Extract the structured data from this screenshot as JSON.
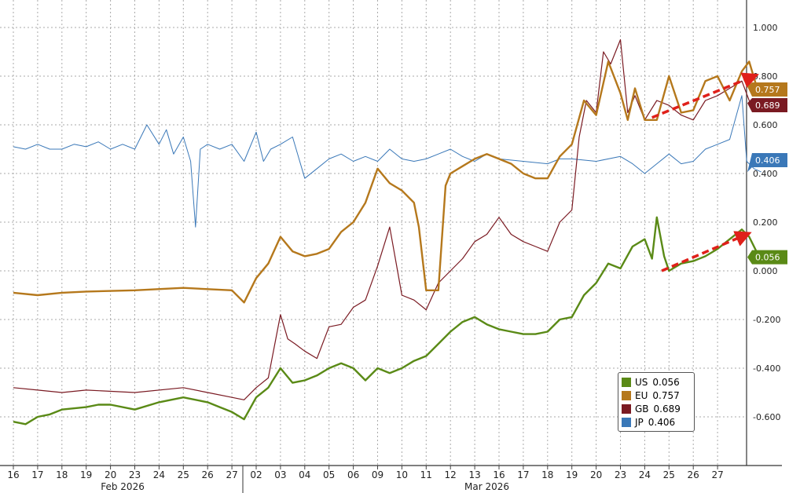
{
  "chart_data": {
    "type": "line",
    "x_labels": [
      "16",
      "17",
      "18",
      "19",
      "20",
      "23",
      "24",
      "25",
      "26",
      "27",
      "02",
      "03",
      "04",
      "05",
      "06",
      "09",
      "10",
      "11",
      "12",
      "13",
      "16",
      "17",
      "18",
      "19",
      "20",
      "23",
      "24",
      "25",
      "26",
      "27"
    ],
    "month_labels": [
      {
        "label": "Feb 2026",
        "at": 4.5
      },
      {
        "label": "Mar 2026",
        "at": 19.5
      }
    ],
    "ylim": [
      -0.75,
      1.1
    ],
    "yticks": [
      "1.000",
      "0.800",
      "0.600",
      "0.400",
      "0.200",
      "0.000",
      "-0.200",
      "-0.400",
      "-0.600"
    ],
    "ytick_values": [
      1,
      0.8,
      0.6,
      0.4,
      0.2,
      0,
      -0.2,
      -0.4,
      -0.6
    ],
    "grid": true,
    "legend_position": "bottom-right",
    "series": [
      {
        "name": "US",
        "last": "0.056",
        "color": "#5a8a16",
        "width": 2.4,
        "points": [
          [
            0,
            -0.62
          ],
          [
            0.5,
            -0.63
          ],
          [
            1,
            -0.6
          ],
          [
            1.5,
            -0.59
          ],
          [
            2,
            -0.57
          ],
          [
            3,
            -0.56
          ],
          [
            3.5,
            -0.55
          ],
          [
            4,
            -0.55
          ],
          [
            5,
            -0.57
          ],
          [
            6,
            -0.54
          ],
          [
            6.5,
            -0.53
          ],
          [
            7,
            -0.52
          ],
          [
            8,
            -0.54
          ],
          [
            8.5,
            -0.56
          ],
          [
            9,
            -0.58
          ],
          [
            9.5,
            -0.61
          ],
          [
            10,
            -0.52
          ],
          [
            10.5,
            -0.48
          ],
          [
            11,
            -0.4
          ],
          [
            11.5,
            -0.46
          ],
          [
            12,
            -0.45
          ],
          [
            12.5,
            -0.43
          ],
          [
            13,
            -0.4
          ],
          [
            13.5,
            -0.38
          ],
          [
            14,
            -0.4
          ],
          [
            14.5,
            -0.45
          ],
          [
            15,
            -0.4
          ],
          [
            15.5,
            -0.42
          ],
          [
            16,
            -0.4
          ],
          [
            16.5,
            -0.37
          ],
          [
            17,
            -0.35
          ],
          [
            17.5,
            -0.3
          ],
          [
            18,
            -0.25
          ],
          [
            18.5,
            -0.21
          ],
          [
            19,
            -0.19
          ],
          [
            19.5,
            -0.22
          ],
          [
            20,
            -0.24
          ],
          [
            20.5,
            -0.25
          ],
          [
            21,
            -0.26
          ],
          [
            21.5,
            -0.26
          ],
          [
            22,
            -0.25
          ],
          [
            22.5,
            -0.2
          ],
          [
            23,
            -0.19
          ],
          [
            23.5,
            -0.1
          ],
          [
            24,
            -0.05
          ],
          [
            24.5,
            0.03
          ],
          [
            25,
            0.01
          ],
          [
            25.5,
            0.1
          ],
          [
            26,
            0.13
          ],
          [
            26.3,
            0.05
          ],
          [
            26.5,
            0.22
          ],
          [
            26.8,
            0.06
          ],
          [
            27,
            0.0
          ],
          [
            27.5,
            0.03
          ],
          [
            28,
            0.04
          ],
          [
            28.5,
            0.06
          ],
          [
            29,
            0.09
          ],
          [
            29.5,
            0.13
          ],
          [
            30,
            0.17
          ],
          [
            30.3,
            0.14
          ],
          [
            30.6,
            0.08
          ],
          [
            30.8,
            0.056
          ]
        ]
      },
      {
        "name": "EU",
        "last": "0.757",
        "color": "#b5781c",
        "width": 2.4,
        "points": [
          [
            0,
            -0.09
          ],
          [
            1,
            -0.1
          ],
          [
            2,
            -0.09
          ],
          [
            3,
            -0.085
          ],
          [
            5,
            -0.08
          ],
          [
            7,
            -0.07
          ],
          [
            8,
            -0.075
          ],
          [
            9,
            -0.08
          ],
          [
            9.5,
            -0.13
          ],
          [
            10,
            -0.03
          ],
          [
            10.5,
            0.03
          ],
          [
            11,
            0.14
          ],
          [
            11.5,
            0.08
          ],
          [
            12,
            0.06
          ],
          [
            12.5,
            0.07
          ],
          [
            13,
            0.09
          ],
          [
            13.5,
            0.16
          ],
          [
            14,
            0.2
          ],
          [
            14.5,
            0.28
          ],
          [
            15,
            0.42
          ],
          [
            15.5,
            0.36
          ],
          [
            16,
            0.33
          ],
          [
            16.5,
            0.28
          ],
          [
            16.7,
            0.18
          ],
          [
            17,
            -0.08
          ],
          [
            17.5,
            -0.08
          ],
          [
            17.8,
            0.35
          ],
          [
            18,
            0.4
          ],
          [
            18.5,
            0.43
          ],
          [
            19,
            0.46
          ],
          [
            19.5,
            0.48
          ],
          [
            20,
            0.46
          ],
          [
            20.5,
            0.44
          ],
          [
            21,
            0.4
          ],
          [
            21.5,
            0.38
          ],
          [
            22,
            0.38
          ],
          [
            22.5,
            0.47
          ],
          [
            23,
            0.52
          ],
          [
            23.5,
            0.7
          ],
          [
            24,
            0.64
          ],
          [
            24.5,
            0.86
          ],
          [
            25,
            0.73
          ],
          [
            25.3,
            0.62
          ],
          [
            25.6,
            0.75
          ],
          [
            26,
            0.62
          ],
          [
            26.5,
            0.62
          ],
          [
            27,
            0.8
          ],
          [
            27.5,
            0.65
          ],
          [
            28,
            0.66
          ],
          [
            28.5,
            0.78
          ],
          [
            29,
            0.8
          ],
          [
            29.5,
            0.7
          ],
          [
            30,
            0.82
          ],
          [
            30.3,
            0.86
          ],
          [
            30.6,
            0.76
          ],
          [
            30.8,
            0.757
          ]
        ]
      },
      {
        "name": "GB",
        "last": "0.689",
        "color": "#7a1a22",
        "width": 1.2,
        "points": [
          [
            0,
            -0.48
          ],
          [
            1,
            -0.49
          ],
          [
            2,
            -0.5
          ],
          [
            3,
            -0.49
          ],
          [
            5,
            -0.5
          ],
          [
            7,
            -0.48
          ],
          [
            8,
            -0.5
          ],
          [
            9,
            -0.52
          ],
          [
            9.5,
            -0.53
          ],
          [
            10,
            -0.48
          ],
          [
            10.5,
            -0.44
          ],
          [
            11,
            -0.18
          ],
          [
            11.3,
            -0.28
          ],
          [
            11.6,
            -0.3
          ],
          [
            12,
            -0.33
          ],
          [
            12.5,
            -0.36
          ],
          [
            13,
            -0.23
          ],
          [
            13.5,
            -0.22
          ],
          [
            14,
            -0.15
          ],
          [
            14.5,
            -0.12
          ],
          [
            15,
            0.02
          ],
          [
            15.5,
            0.18
          ],
          [
            16,
            -0.1
          ],
          [
            16.5,
            -0.12
          ],
          [
            17,
            -0.16
          ],
          [
            17.5,
            -0.05
          ],
          [
            18,
            0.0
          ],
          [
            18.5,
            0.05
          ],
          [
            19,
            0.12
          ],
          [
            19.5,
            0.15
          ],
          [
            20,
            0.22
          ],
          [
            20.5,
            0.15
          ],
          [
            21,
            0.12
          ],
          [
            21.5,
            0.1
          ],
          [
            22,
            0.08
          ],
          [
            22.5,
            0.2
          ],
          [
            23,
            0.25
          ],
          [
            23.3,
            0.55
          ],
          [
            23.6,
            0.7
          ],
          [
            24,
            0.65
          ],
          [
            24.3,
            0.9
          ],
          [
            24.6,
            0.85
          ],
          [
            25,
            0.95
          ],
          [
            25.3,
            0.65
          ],
          [
            25.6,
            0.72
          ],
          [
            26,
            0.62
          ],
          [
            26.5,
            0.7
          ],
          [
            27,
            0.68
          ],
          [
            27.5,
            0.64
          ],
          [
            28,
            0.62
          ],
          [
            28.5,
            0.7
          ],
          [
            29,
            0.72
          ],
          [
            29.5,
            0.75
          ],
          [
            30,
            0.78
          ],
          [
            30.3,
            0.7
          ],
          [
            30.6,
            0.67
          ],
          [
            30.8,
            0.689
          ]
        ]
      },
      {
        "name": "JP",
        "last": "0.406",
        "color": "#3a78b8",
        "width": 1.0,
        "points": [
          [
            0,
            0.51
          ],
          [
            0.5,
            0.5
          ],
          [
            1,
            0.52
          ],
          [
            1.5,
            0.5
          ],
          [
            2,
            0.5
          ],
          [
            2.5,
            0.52
          ],
          [
            3,
            0.51
          ],
          [
            3.5,
            0.53
          ],
          [
            4,
            0.5
          ],
          [
            4.5,
            0.52
          ],
          [
            5,
            0.5
          ],
          [
            5.5,
            0.6
          ],
          [
            6,
            0.52
          ],
          [
            6.3,
            0.58
          ],
          [
            6.6,
            0.48
          ],
          [
            7,
            0.55
          ],
          [
            7.3,
            0.45
          ],
          [
            7.5,
            0.18
          ],
          [
            7.7,
            0.5
          ],
          [
            8,
            0.52
          ],
          [
            8.5,
            0.5
          ],
          [
            9,
            0.52
          ],
          [
            9.5,
            0.45
          ],
          [
            10,
            0.57
          ],
          [
            10.3,
            0.45
          ],
          [
            10.6,
            0.5
          ],
          [
            11,
            0.52
          ],
          [
            11.5,
            0.55
          ],
          [
            12,
            0.38
          ],
          [
            12.5,
            0.42
          ],
          [
            13,
            0.46
          ],
          [
            13.5,
            0.48
          ],
          [
            14,
            0.45
          ],
          [
            14.5,
            0.47
          ],
          [
            15,
            0.45
          ],
          [
            15.5,
            0.5
          ],
          [
            16,
            0.46
          ],
          [
            16.5,
            0.45
          ],
          [
            17,
            0.46
          ],
          [
            17.5,
            0.48
          ],
          [
            18,
            0.5
          ],
          [
            18.5,
            0.47
          ],
          [
            19,
            0.45
          ],
          [
            19.5,
            0.48
          ],
          [
            20,
            0.46
          ],
          [
            21,
            0.45
          ],
          [
            22,
            0.44
          ],
          [
            22.5,
            0.46
          ],
          [
            23,
            0.46
          ],
          [
            24,
            0.45
          ],
          [
            25,
            0.47
          ],
          [
            25.5,
            0.44
          ],
          [
            26,
            0.4
          ],
          [
            26.5,
            0.44
          ],
          [
            27,
            0.48
          ],
          [
            27.5,
            0.44
          ],
          [
            28,
            0.45
          ],
          [
            28.5,
            0.5
          ],
          [
            29,
            0.52
          ],
          [
            29.5,
            0.54
          ],
          [
            30,
            0.72
          ],
          [
            30.2,
            0.45
          ],
          [
            30.5,
            0.42
          ],
          [
            30.8,
            0.406
          ]
        ]
      }
    ],
    "annotations": [
      {
        "type": "arrow",
        "color": "#e0201a",
        "from": [
          26.3,
          0.63
        ],
        "to": [
          30.5,
          0.8
        ]
      },
      {
        "type": "arrow",
        "color": "#e0201a",
        "from": [
          26.7,
          0.0
        ],
        "to": [
          30.2,
          0.15
        ]
      }
    ]
  }
}
